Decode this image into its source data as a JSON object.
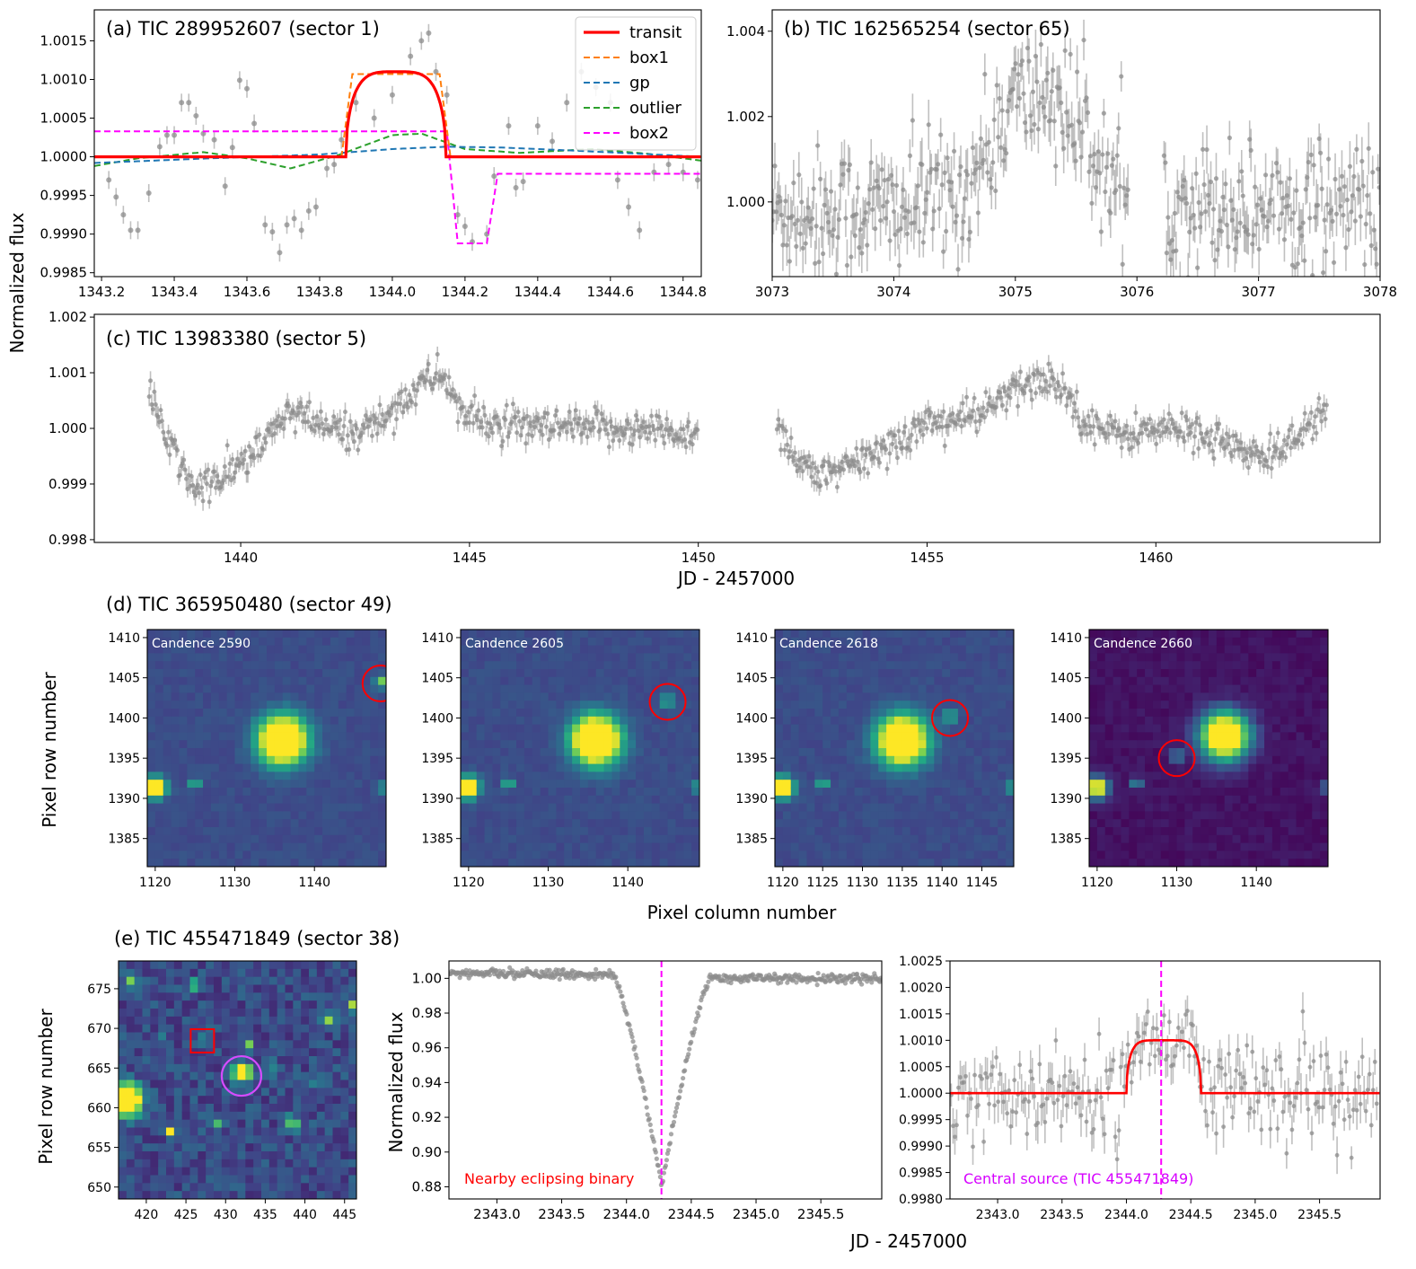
{
  "figure": {
    "ylabel_top": "Normalized flux",
    "xlabel_top": "JD - 2457000",
    "ylabel_d": "Pixel row number",
    "xlabel_d": "Pixel column number",
    "ylabel_e": "Pixel row number",
    "xlabel_e": "JD - 2457000",
    "ylabel_e2": "Normalized flux"
  },
  "colors": {
    "points": "#8c8c8c",
    "transit": "#ff0000",
    "box1": "#ff7f0e",
    "gp": "#1f77b4",
    "outlier": "#2ca02c",
    "box2": "#ff00ff",
    "viridis_dark": "#440154",
    "viridis_bg": "#3b4f8a",
    "viridis_yellow": "#fde725"
  },
  "chart_data": [
    {
      "id": "a",
      "type": "scatter",
      "title": "(a) TIC 289952607 (sector 1)",
      "xlim": [
        1343.18,
        1344.85
      ],
      "ylim": [
        0.99845,
        1.0019
      ],
      "xticks": [
        "1343.2",
        "1343.4",
        "1343.6",
        "1343.8",
        "1344.0",
        "1344.2",
        "1344.4",
        "1344.6",
        "1344.8"
      ],
      "yticks": [
        "0.9985",
        "0.9990",
        "0.9995",
        "1.0000",
        "1.0005",
        "1.0010",
        "1.0015"
      ],
      "legend": [
        "transit",
        "box1",
        "gp",
        "outlier",
        "box2"
      ],
      "legend_position": "top-right",
      "points": [
        [
          1343.22,
          0.9997
        ],
        [
          1343.24,
          0.99948
        ],
        [
          1343.26,
          0.99925
        ],
        [
          1343.28,
          0.99905
        ],
        [
          1343.3,
          0.99905
        ],
        [
          1343.33,
          0.99953
        ],
        [
          1343.36,
          1.00013
        ],
        [
          1343.38,
          1.00028
        ],
        [
          1343.4,
          1.00028
        ],
        [
          1343.42,
          1.0007
        ],
        [
          1343.44,
          1.0007
        ],
        [
          1343.46,
          1.00053
        ],
        [
          1343.48,
          1.0003
        ],
        [
          1343.51,
          1.00022
        ],
        [
          1343.54,
          0.99962
        ],
        [
          1343.56,
          1.00012
        ],
        [
          1343.58,
          1.00099
        ],
        [
          1343.6,
          1.00088
        ],
        [
          1343.62,
          1.00043
        ],
        [
          1343.65,
          0.99912
        ],
        [
          1343.67,
          0.99903
        ],
        [
          1343.69,
          0.99876
        ],
        [
          1343.71,
          0.99912
        ],
        [
          1343.73,
          0.9992
        ],
        [
          1343.75,
          0.99905
        ],
        [
          1343.77,
          0.9993
        ],
        [
          1343.79,
          0.99935
        ],
        [
          1343.82,
          0.99985
        ],
        [
          1343.84,
          0.9999
        ],
        [
          1343.86,
          1.00022
        ],
        [
          1343.9,
          1.0007
        ],
        [
          1343.95,
          1.0005
        ],
        [
          1344.0,
          1.0008
        ],
        [
          1344.05,
          1.0013
        ],
        [
          1344.08,
          1.0015
        ],
        [
          1344.1,
          1.0016
        ],
        [
          1344.12,
          1.0011
        ],
        [
          1344.15,
          1.0008
        ],
        [
          1344.18,
          0.99925
        ],
        [
          1344.2,
          0.9991
        ],
        [
          1344.22,
          0.9989
        ],
        [
          1344.26,
          0.999
        ],
        [
          1344.28,
          0.99975
        ],
        [
          1344.32,
          1.0004
        ],
        [
          1344.34,
          0.9996
        ],
        [
          1344.36,
          0.99968
        ],
        [
          1344.4,
          1.0004
        ],
        [
          1344.44,
          1.0002
        ],
        [
          1344.48,
          1.0007
        ],
        [
          1344.52,
          1.0011
        ],
        [
          1344.56,
          1.0009
        ],
        [
          1344.6,
          1.0007
        ],
        [
          1344.62,
          0.9997
        ],
        [
          1344.65,
          0.99935
        ],
        [
          1344.68,
          0.99905
        ],
        [
          1344.72,
          0.9998
        ],
        [
          1344.76,
          0.9999
        ],
        [
          1344.8,
          0.9998
        ],
        [
          1344.84,
          0.9997
        ]
      ],
      "series": [
        {
          "name": "transit",
          "x": [
            1343.18,
            1343.87,
            1343.89,
            1343.93,
            1343.98,
            1344.03,
            1344.08,
            1344.12,
            1344.14,
            1344.15,
            1344.85
          ],
          "y": [
            1.0,
            1.0,
            1.0005,
            1.0009,
            1.00105,
            1.0011,
            1.00105,
            1.0009,
            1.0006,
            1.0,
            1.0
          ]
        },
        {
          "name": "box1",
          "x": [
            1343.18,
            1343.86,
            1343.89,
            1344.13,
            1344.16,
            1344.85
          ],
          "y": [
            1.0,
            1.0,
            1.00107,
            1.00107,
            1.0,
            1.0
          ]
        },
        {
          "name": "gp",
          "x": [
            1343.18,
            1343.5,
            1343.8,
            1344.0,
            1344.15,
            1344.3,
            1344.5,
            1344.85
          ],
          "y": [
            0.99992,
            0.99998,
            1.00003,
            1.0001,
            1.00013,
            1.00012,
            1.00008,
            1.0
          ]
        },
        {
          "name": "outlier",
          "x": [
            1343.18,
            1343.3,
            1343.48,
            1343.6,
            1343.72,
            1343.85,
            1344.0,
            1344.08,
            1344.2,
            1344.35,
            1344.55,
            1344.7,
            1344.85
          ],
          "y": [
            0.99988,
            0.99998,
            1.00006,
            0.99998,
            0.99985,
            1.00002,
            1.00028,
            1.0003,
            1.0001,
            1.00005,
            1.0001,
            1.00004,
            0.99995
          ]
        },
        {
          "name": "box2",
          "x": [
            1343.18,
            1344.15,
            1344.18,
            1344.26,
            1344.29,
            1344.85
          ],
          "y": [
            1.00033,
            1.00033,
            0.99888,
            0.99888,
            0.99978,
            0.99978
          ]
        }
      ]
    },
    {
      "id": "b",
      "type": "scatter",
      "title": "(b) TIC 162565254 (sector 65)",
      "xlim": [
        3073,
        3078
      ],
      "ylim": [
        0.99825,
        1.0045
      ],
      "xticks": [
        "3073",
        "3074",
        "3075",
        "3076",
        "3077",
        "3078"
      ],
      "yticks": [
        "0.998",
        "1.000",
        "1.002",
        "1.004"
      ],
      "gaps": [
        [
          3075.93,
          3076.22
        ]
      ],
      "trend": [
        [
          3073.0,
          0.9998
        ],
        [
          3074.0,
          0.9998
        ],
        [
          3074.6,
          1.0003
        ],
        [
          3075.0,
          1.0024
        ],
        [
          3075.3,
          1.0026
        ],
        [
          3075.6,
          1.0014
        ],
        [
          3075.93,
          0.9998
        ],
        [
          3076.22,
          1.0
        ],
        [
          3078.0,
          0.9999
        ]
      ]
    },
    {
      "id": "c",
      "type": "scatter",
      "title": "(c) TIC 13983380 (sector 5)",
      "xlim": [
        1436.8,
        1464.9
      ],
      "ylim": [
        0.99795,
        1.00205
      ],
      "xticks": [
        "1440",
        "1445",
        "1450",
        "1455",
        "1460"
      ],
      "yticks": [
        "0.998",
        "0.999",
        "1.000",
        "1.001",
        "1.002"
      ],
      "gaps": [
        [
          1450.0,
          1451.7
        ]
      ],
      "trend": [
        [
          1438.0,
          1.0006
        ],
        [
          1438.5,
          0.9996
        ],
        [
          1439.0,
          0.9989
        ],
        [
          1439.6,
          0.9991
        ],
        [
          1440.5,
          0.9997
        ],
        [
          1441.0,
          1.0003
        ],
        [
          1441.6,
          1.0001
        ],
        [
          1442.3,
          0.9999
        ],
        [
          1443.0,
          1.0001
        ],
        [
          1443.8,
          1.0007
        ],
        [
          1444.4,
          1.001
        ],
        [
          1444.9,
          1.0002
        ],
        [
          1446.0,
          1.0
        ],
        [
          1448.5,
          1.0
        ],
        [
          1450.0,
          0.9999
        ],
        [
          1451.7,
          1.0001
        ],
        [
          1452.2,
          0.9994
        ],
        [
          1452.8,
          0.9991
        ],
        [
          1453.5,
          0.9994
        ],
        [
          1454.2,
          0.9997
        ],
        [
          1455.0,
          1.0001
        ],
        [
          1456.0,
          1.0002
        ],
        [
          1457.2,
          1.0008
        ],
        [
          1457.8,
          1.0009
        ],
        [
          1458.4,
          1.0002
        ],
        [
          1459.0,
          0.9999
        ],
        [
          1460.5,
          1.0
        ],
        [
          1461.5,
          0.9998
        ],
        [
          1462.2,
          0.9994
        ],
        [
          1462.8,
          0.9997
        ],
        [
          1463.7,
          1.0003
        ]
      ]
    },
    {
      "id": "d",
      "type": "heatmap",
      "title": "(d) TIC 365950480 (sector 49)",
      "panels": [
        {
          "label": "Candence 2590",
          "xlim": [
            1119,
            1149
          ],
          "ylim": [
            1381.5,
            1411
          ],
          "xticks": [
            "1120",
            "1130",
            "1140"
          ],
          "star": [
            1136,
            1397
          ],
          "circle": [
            1148.3,
            1404.3
          ]
        },
        {
          "label": "Candence 2605",
          "xlim": [
            1119,
            1149
          ],
          "ylim": [
            1381.5,
            1411
          ],
          "xticks": [
            "1120",
            "1130",
            "1140"
          ],
          "star": [
            1136,
            1397
          ],
          "circle": [
            1145,
            1402
          ]
        },
        {
          "label": "Candence 2618",
          "xlim": [
            1119,
            1149
          ],
          "ylim": [
            1381.5,
            1411
          ],
          "xticks": [
            "1120",
            "1125",
            "1130",
            "1135",
            "1140",
            "1145"
          ],
          "star": [
            1135,
            1397
          ],
          "circle": [
            1141,
            1400
          ]
        },
        {
          "label": "Candence 2660",
          "xlim": [
            1119,
            1149
          ],
          "ylim": [
            1381.5,
            1411
          ],
          "xticks": [
            "1120",
            "1130",
            "1140"
          ],
          "star": [
            1136,
            1397.5
          ],
          "circle": [
            1130,
            1395
          ]
        }
      ],
      "yticks": [
        "1385",
        "1390",
        "1395",
        "1400",
        "1405",
        "1410"
      ]
    },
    {
      "id": "e",
      "title": "(e) TIC 455471849 (sector 38)",
      "panels": [
        {
          "type": "heatmap",
          "xlim": [
            416.5,
            446.5
          ],
          "ylim": [
            648.5,
            678.5
          ],
          "xticks": [
            "420",
            "425",
            "430",
            "435",
            "440",
            "445"
          ],
          "yticks": [
            "650",
            "655",
            "660",
            "665",
            "670",
            "675"
          ],
          "circle": [
            432,
            664
          ],
          "square": [
            427,
            668.5
          ]
        },
        {
          "type": "scatter",
          "xlim": [
            2342.63,
            2345.97
          ],
          "ylim": [
            0.873,
            1.01
          ],
          "xticks": [
            "2343.0",
            "2343.5",
            "2344.0",
            "2344.5",
            "2345.0",
            "2345.5"
          ],
          "yticks": [
            "0.88",
            "0.90",
            "0.92",
            "0.94",
            "0.96",
            "0.98",
            "1.00"
          ],
          "vline": 2344.27,
          "annotation": "Nearby eclipsing binary",
          "eclipse": {
            "center": 2344.27,
            "half_width": 0.37,
            "depth": 0.12
          }
        },
        {
          "type": "scatter",
          "xlim": [
            2342.63,
            2345.97
          ],
          "ylim": [
            0.998,
            1.0025
          ],
          "xticks": [
            "2343.0",
            "2343.5",
            "2344.0",
            "2344.5",
            "2345.0",
            "2345.5"
          ],
          "yticks": [
            "0.9980",
            "0.9985",
            "0.9990",
            "0.9995",
            "1.0000",
            "1.0005",
            "1.0010",
            "1.0015",
            "1.0020",
            "1.0025"
          ],
          "vline": 2344.27,
          "annotation": "Central source (TIC 455471849)",
          "model": {
            "start": 2344.0,
            "end": 2344.58,
            "height": 0.001
          }
        }
      ]
    }
  ]
}
